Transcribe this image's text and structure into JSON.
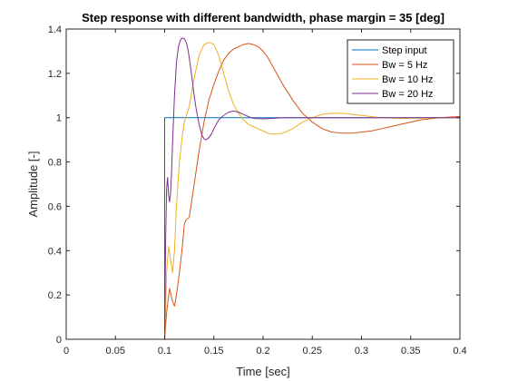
{
  "chart_data": {
    "type": "line",
    "title": "Step response with different bandwidth, phase margin = 35 [deg]",
    "xlabel": "Time [sec]",
    "ylabel": "Amplitude [-]",
    "xlim": [
      0,
      0.4
    ],
    "ylim": [
      0,
      1.4
    ],
    "xticks": [
      0,
      0.05,
      0.1,
      0.15,
      0.2,
      0.25,
      0.3,
      0.35,
      0.4
    ],
    "xtick_labels": [
      "0",
      "0.05",
      "0.1",
      "0.15",
      "0.2",
      "0.25",
      "0.3",
      "0.35",
      "0.4"
    ],
    "yticks": [
      0,
      0.2,
      0.4,
      0.6,
      0.8,
      1,
      1.2,
      1.4
    ],
    "ytick_labels": [
      "0",
      "0.2",
      "0.4",
      "0.6",
      "0.8",
      "1",
      "1.2",
      "1.4"
    ],
    "grid": false,
    "legend_position": "top-right",
    "series": [
      {
        "name": "Step input",
        "color": "#0072BD",
        "x": [
          0,
          0.1,
          0.1,
          0.4
        ],
        "y": [
          0,
          0,
          1,
          1
        ]
      },
      {
        "name": "Bw = 5 Hz",
        "color": "#D95319",
        "x": [
          0,
          0.1,
          0.102,
          0.105,
          0.108,
          0.11,
          0.112,
          0.115,
          0.118,
          0.12,
          0.122,
          0.125,
          0.13,
          0.135,
          0.14,
          0.145,
          0.15,
          0.155,
          0.16,
          0.165,
          0.17,
          0.175,
          0.18,
          0.185,
          0.19,
          0.195,
          0.2,
          0.205,
          0.21,
          0.215,
          0.22,
          0.23,
          0.24,
          0.25,
          0.26,
          0.27,
          0.28,
          0.29,
          0.3,
          0.31,
          0.32,
          0.33,
          0.34,
          0.35,
          0.36,
          0.37,
          0.38,
          0.39,
          0.4
        ],
        "y": [
          0,
          0,
          0.12,
          0.23,
          0.17,
          0.15,
          0.2,
          0.3,
          0.42,
          0.52,
          0.54,
          0.55,
          0.7,
          0.85,
          0.98,
          1.08,
          1.15,
          1.21,
          1.26,
          1.29,
          1.31,
          1.32,
          1.33,
          1.335,
          1.33,
          1.32,
          1.3,
          1.27,
          1.23,
          1.19,
          1.15,
          1.08,
          1.02,
          0.98,
          0.95,
          0.935,
          0.93,
          0.93,
          0.935,
          0.94,
          0.95,
          0.96,
          0.97,
          0.98,
          0.99,
          0.995,
          1.0,
          1.003,
          1.005
        ]
      },
      {
        "name": "Bw = 10 Hz",
        "color": "#EDB120",
        "x": [
          0,
          0.1,
          0.102,
          0.104,
          0.106,
          0.108,
          0.11,
          0.112,
          0.115,
          0.118,
          0.12,
          0.125,
          0.13,
          0.135,
          0.14,
          0.145,
          0.15,
          0.155,
          0.16,
          0.165,
          0.17,
          0.175,
          0.18,
          0.185,
          0.19,
          0.195,
          0.2,
          0.205,
          0.21,
          0.22,
          0.23,
          0.24,
          0.25,
          0.26,
          0.27,
          0.28,
          0.29,
          0.3,
          0.32,
          0.34,
          0.36,
          0.38,
          0.4
        ],
        "y": [
          0,
          0,
          0.3,
          0.42,
          0.36,
          0.3,
          0.4,
          0.6,
          0.8,
          0.92,
          0.98,
          1.05,
          1.18,
          1.28,
          1.33,
          1.34,
          1.33,
          1.28,
          1.2,
          1.12,
          1.06,
          1.02,
          0.99,
          0.97,
          0.96,
          0.95,
          0.94,
          0.93,
          0.925,
          0.93,
          0.95,
          0.98,
          1.0,
          1.015,
          1.02,
          1.02,
          1.015,
          1.01,
          1.0,
          0.997,
          0.998,
          1.0,
          1.0
        ]
      },
      {
        "name": "Bw = 20 Hz",
        "color": "#7E2F8E",
        "x": [
          0,
          0.1,
          0.101,
          0.102,
          0.103,
          0.104,
          0.105,
          0.106,
          0.107,
          0.108,
          0.11,
          0.112,
          0.114,
          0.116,
          0.118,
          0.12,
          0.122,
          0.124,
          0.126,
          0.128,
          0.13,
          0.132,
          0.135,
          0.138,
          0.14,
          0.142,
          0.145,
          0.148,
          0.15,
          0.155,
          0.16,
          0.165,
          0.17,
          0.175,
          0.18,
          0.185,
          0.19,
          0.2,
          0.21,
          0.22,
          0.23,
          0.24,
          0.25,
          0.26,
          0.28,
          0.3,
          0.35,
          0.4
        ],
        "y": [
          0,
          0,
          0.45,
          0.68,
          0.73,
          0.65,
          0.62,
          0.66,
          0.75,
          0.88,
          1.1,
          1.25,
          1.32,
          1.35,
          1.36,
          1.355,
          1.34,
          1.3,
          1.24,
          1.17,
          1.1,
          1.04,
          0.97,
          0.92,
          0.905,
          0.9,
          0.91,
          0.93,
          0.95,
          0.99,
          1.01,
          1.025,
          1.03,
          1.025,
          1.015,
          1.005,
          0.997,
          0.995,
          0.997,
          1.0,
          1.0,
          1.0,
          1.0,
          1.0,
          1.0,
          1.0,
          1.0,
          1.0
        ]
      }
    ]
  }
}
